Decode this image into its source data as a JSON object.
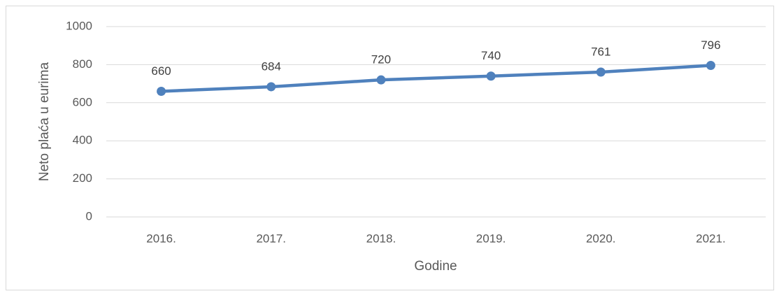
{
  "chart_data": {
    "type": "line",
    "categories": [
      "2016.",
      "2017.",
      "2018.",
      "2019.",
      "2020.",
      "2021."
    ],
    "values": [
      660,
      684,
      720,
      740,
      761,
      796
    ],
    "color": "#4f81bd",
    "ylim": [
      0,
      1000
    ],
    "yticks": [
      0,
      200,
      400,
      600,
      800,
      1000
    ],
    "grid": true,
    "xlabel": "Godine",
    "ylabel": "Neto plaća u eurima"
  }
}
